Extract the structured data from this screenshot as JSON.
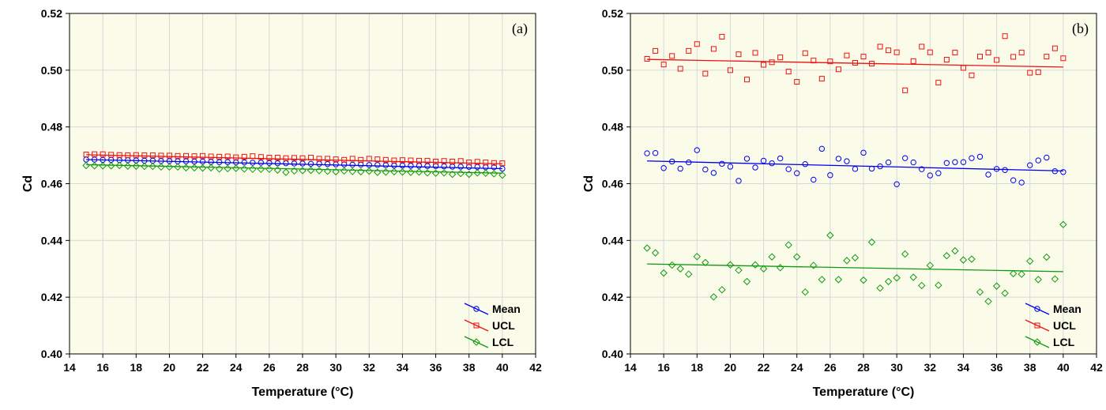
{
  "colors": {
    "mean": "#0000ee",
    "ucl": "#ee1111",
    "lcl": "#119911",
    "panel_bg": "#fbfbea",
    "grid": "#d8d8d8"
  },
  "chart_data": [
    {
      "type": "scatter",
      "panel_label": "(a)",
      "xlabel": "Temperature (°C)",
      "ylabel": "Cd",
      "xlim": [
        14,
        42
      ],
      "ylim": [
        0.4,
        0.52
      ],
      "xticks": [
        "14",
        "16",
        "18",
        "20",
        "22",
        "24",
        "26",
        "28",
        "30",
        "32",
        "34",
        "36",
        "38",
        "40",
        "42"
      ],
      "yticks": [
        "0.40",
        "0.42",
        "0.44",
        "0.46",
        "0.48",
        "0.50",
        "0.52"
      ],
      "grid": true,
      "legend_position": "bottom-right",
      "series": [
        {
          "name": "Mean",
          "marker": "circle",
          "color_key": "mean",
          "fit": [
            0.4685,
            0.4653
          ],
          "x": [
            15,
            15.5,
            16,
            16.5,
            17,
            17.5,
            18,
            18.5,
            19,
            19.5,
            20,
            20.5,
            21,
            21.5,
            22,
            22.5,
            23,
            23.5,
            24,
            24.5,
            25,
            25.5,
            26,
            26.5,
            27,
            27.5,
            28,
            28.5,
            29,
            29.5,
            30,
            30.5,
            31,
            31.5,
            32,
            32.5,
            33,
            33.5,
            34,
            34.5,
            35,
            35.5,
            36,
            36.5,
            37,
            37.5,
            38,
            38.5,
            39,
            39.5,
            40
          ],
          "y": [
            0.4685,
            0.4685,
            0.4684,
            0.4684,
            0.4683,
            0.4683,
            0.4682,
            0.4681,
            0.4681,
            0.468,
            0.468,
            0.4679,
            0.4679,
            0.4678,
            0.4678,
            0.4677,
            0.4676,
            0.4676,
            0.4675,
            0.4675,
            0.4674,
            0.4674,
            0.4673,
            0.4672,
            0.4672,
            0.4671,
            0.4671,
            0.467,
            0.467,
            0.4669,
            0.4668,
            0.4668,
            0.4667,
            0.4667,
            0.4666,
            0.4666,
            0.4665,
            0.4664,
            0.4664,
            0.4663,
            0.4663,
            0.4662,
            0.4662,
            0.4661,
            0.466,
            0.466,
            0.4659,
            0.4659,
            0.4658,
            0.4658,
            0.4653
          ]
        },
        {
          "name": "UCL",
          "marker": "square",
          "color_key": "ucl",
          "fit": [
            0.4702,
            0.467
          ],
          "x": [
            15,
            15.5,
            16,
            16.5,
            17,
            17.5,
            18,
            18.5,
            19,
            19.5,
            20,
            20.5,
            21,
            21.5,
            22,
            22.5,
            23,
            23.5,
            24,
            24.5,
            25,
            25.5,
            26,
            26.5,
            27,
            27.5,
            28,
            28.5,
            29,
            29.5,
            30,
            30.5,
            31,
            31.5,
            32,
            32.5,
            33,
            33.5,
            34,
            34.5,
            35,
            35.5,
            36,
            36.5,
            37,
            37.5,
            38,
            38.5,
            39,
            39.5,
            40
          ],
          "y": [
            0.4703,
            0.4704,
            0.4704,
            0.4702,
            0.4701,
            0.47,
            0.4701,
            0.47,
            0.47,
            0.4699,
            0.4699,
            0.4698,
            0.4698,
            0.4697,
            0.4698,
            0.4696,
            0.4695,
            0.4696,
            0.4693,
            0.4695,
            0.4697,
            0.4694,
            0.4692,
            0.4692,
            0.469,
            0.4691,
            0.469,
            0.4692,
            0.4688,
            0.4688,
            0.4686,
            0.4684,
            0.4688,
            0.4684,
            0.4688,
            0.4686,
            0.4684,
            0.4682,
            0.4683,
            0.4682,
            0.4681,
            0.4681,
            0.4678,
            0.468,
            0.4678,
            0.468,
            0.4675,
            0.4677,
            0.4675,
            0.4673,
            0.4672
          ]
        },
        {
          "name": "LCL",
          "marker": "diamond",
          "color_key": "lcl",
          "fit": [
            0.4667,
            0.4637
          ],
          "x": [
            15,
            15.5,
            16,
            16.5,
            17,
            17.5,
            18,
            18.5,
            19,
            19.5,
            20,
            20.5,
            21,
            21.5,
            22,
            22.5,
            23,
            23.5,
            24,
            24.5,
            25,
            25.5,
            26,
            26.5,
            27,
            27.5,
            28,
            28.5,
            29,
            29.5,
            30,
            30.5,
            31,
            31.5,
            32,
            32.5,
            33,
            33.5,
            34,
            34.5,
            35,
            35.5,
            36,
            36.5,
            37,
            37.5,
            38,
            38.5,
            39,
            39.5,
            40
          ],
          "y": [
            0.4664,
            0.4663,
            0.4663,
            0.4663,
            0.4664,
            0.4662,
            0.4662,
            0.4661,
            0.4661,
            0.4659,
            0.4659,
            0.4659,
            0.4656,
            0.4656,
            0.4655,
            0.4656,
            0.4652,
            0.4653,
            0.4654,
            0.4652,
            0.4651,
            0.4651,
            0.4651,
            0.4648,
            0.464,
            0.4645,
            0.4646,
            0.4647,
            0.4646,
            0.4644,
            0.4642,
            0.4645,
            0.4643,
            0.4642,
            0.4644,
            0.464,
            0.4641,
            0.4642,
            0.4641,
            0.464,
            0.4641,
            0.4638,
            0.4637,
            0.4638,
            0.4633,
            0.4636,
            0.4633,
            0.4638,
            0.4637,
            0.4635,
            0.463
          ]
        }
      ]
    },
    {
      "type": "scatter",
      "panel_label": "(b)",
      "xlabel": "Temperature (°C)",
      "ylabel": "Cd",
      "xlim": [
        14,
        42
      ],
      "ylim": [
        0.4,
        0.52
      ],
      "xticks": [
        "14",
        "16",
        "18",
        "20",
        "22",
        "24",
        "26",
        "28",
        "30",
        "32",
        "34",
        "36",
        "38",
        "40",
        "42"
      ],
      "yticks": [
        "0.40",
        "0.42",
        "0.44",
        "0.46",
        "0.48",
        "0.50",
        "0.52"
      ],
      "grid": true,
      "legend_position": "bottom-right",
      "series": [
        {
          "name": "Mean",
          "marker": "circle",
          "color_key": "mean",
          "fit": [
            0.468,
            0.4645
          ],
          "x": [
            15,
            15.5,
            16,
            16.5,
            17,
            17.5,
            18,
            18.5,
            19,
            19.5,
            20,
            20.5,
            21,
            21.5,
            22,
            22.5,
            23,
            23.5,
            24,
            24.5,
            25,
            25.5,
            26,
            26.5,
            27,
            27.5,
            28,
            28.5,
            29,
            29.5,
            30,
            30.5,
            31,
            31.5,
            32,
            32.5,
            33,
            33.5,
            34,
            34.5,
            35,
            35.5,
            36,
            36.5,
            37,
            37.5,
            38,
            38.5,
            39,
            39.5,
            40
          ],
          "y": [
            0.4707,
            0.4708,
            0.4655,
            0.4678,
            0.4653,
            0.4675,
            0.4718,
            0.465,
            0.4638,
            0.467,
            0.466,
            0.461,
            0.4688,
            0.4657,
            0.4681,
            0.4672,
            0.4689,
            0.4651,
            0.4637,
            0.4669,
            0.4614,
            0.4723,
            0.463,
            0.4688,
            0.4679,
            0.4652,
            0.4709,
            0.4653,
            0.4661,
            0.4675,
            0.4598,
            0.469,
            0.4675,
            0.4651,
            0.4629,
            0.4637,
            0.4673,
            0.4676,
            0.4676,
            0.469,
            0.4695,
            0.4632,
            0.4652,
            0.4648,
            0.4612,
            0.4604,
            0.4665,
            0.4682,
            0.4692,
            0.4644,
            0.4641
          ]
        },
        {
          "name": "UCL",
          "marker": "square",
          "color_key": "ucl",
          "fit": [
            0.5038,
            0.5011
          ],
          "x": [
            15,
            15.5,
            16,
            16.5,
            17,
            17.5,
            18,
            18.5,
            19,
            19.5,
            20,
            20.5,
            21,
            21.5,
            22,
            22.5,
            23,
            23.5,
            24,
            24.5,
            25,
            25.5,
            26,
            26.5,
            27,
            27.5,
            28,
            28.5,
            29,
            29.5,
            30,
            30.5,
            31,
            31.5,
            32,
            32.5,
            33,
            33.5,
            34,
            34.5,
            35,
            35.5,
            36,
            36.5,
            37,
            37.5,
            38,
            38.5,
            39,
            39.5,
            40
          ],
          "y": [
            0.504,
            0.5068,
            0.502,
            0.505,
            0.5005,
            0.5068,
            0.5092,
            0.4988,
            0.5075,
            0.5118,
            0.5,
            0.5056,
            0.4967,
            0.5061,
            0.5019,
            0.5028,
            0.5045,
            0.4995,
            0.4959,
            0.506,
            0.5034,
            0.497,
            0.5031,
            0.5003,
            0.5052,
            0.5026,
            0.5048,
            0.5023,
            0.5083,
            0.507,
            0.5063,
            0.4929,
            0.5032,
            0.5083,
            0.5063,
            0.4956,
            0.5037,
            0.5062,
            0.5008,
            0.4982,
            0.5048,
            0.5062,
            0.5036,
            0.512,
            0.5047,
            0.5062,
            0.4991,
            0.4993,
            0.5048,
            0.5077,
            0.5042
          ]
        },
        {
          "name": "LCL",
          "marker": "diamond",
          "color_key": "lcl",
          "fit": [
            0.4317,
            0.429
          ],
          "x": [
            15,
            15.5,
            16,
            16.5,
            17,
            17.5,
            18,
            18.5,
            19,
            19.5,
            20,
            20.5,
            21,
            21.5,
            22,
            22.5,
            23,
            23.5,
            24,
            24.5,
            25,
            25.5,
            26,
            26.5,
            27,
            27.5,
            28,
            28.5,
            29,
            29.5,
            30,
            30.5,
            31,
            31.5,
            32,
            32.5,
            33,
            33.5,
            34,
            34.5,
            35,
            35.5,
            36,
            36.5,
            37,
            37.5,
            38,
            38.5,
            39,
            39.5,
            40
          ],
          "y": [
            0.4373,
            0.4356,
            0.4285,
            0.4313,
            0.43,
            0.4281,
            0.4343,
            0.4322,
            0.4201,
            0.4226,
            0.4314,
            0.4295,
            0.4255,
            0.4314,
            0.43,
            0.4342,
            0.4304,
            0.4384,
            0.4342,
            0.4218,
            0.4312,
            0.4262,
            0.4418,
            0.4262,
            0.4329,
            0.4339,
            0.426,
            0.4394,
            0.4232,
            0.4255,
            0.4268,
            0.4352,
            0.427,
            0.4241,
            0.4312,
            0.4242,
            0.4346,
            0.4363,
            0.4331,
            0.4334,
            0.4218,
            0.4185,
            0.4239,
            0.4214,
            0.4283,
            0.4281,
            0.4327,
            0.4262,
            0.4341,
            0.4264,
            0.4456
          ]
        }
      ]
    }
  ]
}
